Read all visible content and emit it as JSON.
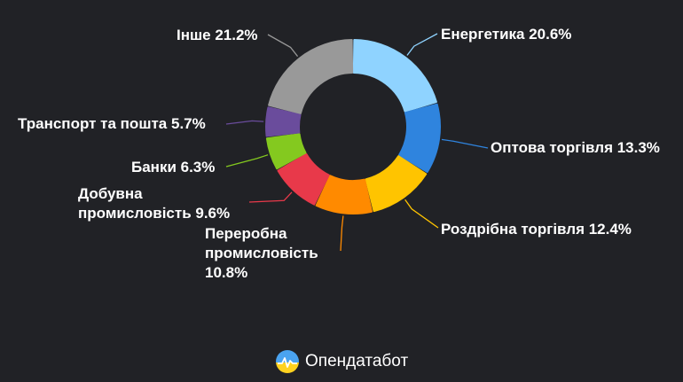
{
  "chart_data": {
    "type": "pie",
    "categories": [
      "Енергетика",
      "Оптова торгівля",
      "Роздрібна торгівля",
      "Переробна промисловість",
      "Добувна промисловість",
      "Банки",
      "Транспорт та пошта",
      "Інше"
    ],
    "values": [
      20.6,
      13.3,
      12.4,
      10.8,
      9.6,
      6.3,
      5.7,
      21.2
    ],
    "unit": "%",
    "donut": true,
    "slice_colors": [
      "#8fd3ff",
      "#2f84de",
      "#ffc400",
      "#ff8a00",
      "#e8394a",
      "#84c91f",
      "#6a4c9c",
      "#999999"
    ],
    "slices": [
      {
        "label": "Енергетика 20.6%"
      },
      {
        "label": "Оптова торгівля 13.3%"
      },
      {
        "label": "Роздрібна торгівля 12.4%"
      },
      {
        "label": "Переробна промисловість 10.8%"
      },
      {
        "label": "Добувна промисловість 9.6%"
      },
      {
        "label": "Банки 6.3%"
      },
      {
        "label": "Транспорт та пошта 5.7%"
      },
      {
        "label": "Інше 21.2%"
      }
    ]
  },
  "footer": {
    "brand": "Опендатабот",
    "logo_icon": "opendatabot-logo-icon"
  },
  "colors": {
    "background": "#212226",
    "text": "#ffffff"
  }
}
